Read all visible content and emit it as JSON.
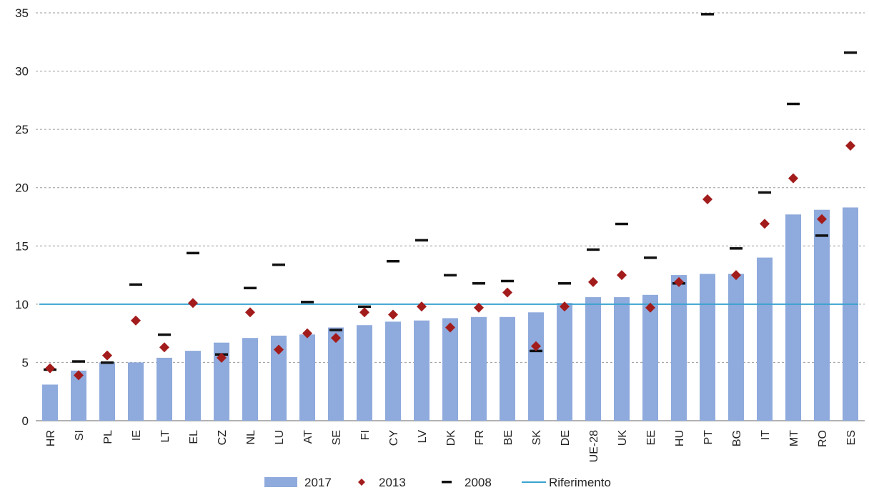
{
  "chart_data": {
    "type": "bar",
    "title": "",
    "xlabel": "",
    "ylabel": "",
    "ylim": [
      0,
      35
    ],
    "y_ticks": [
      0,
      5,
      10,
      15,
      20,
      25,
      30,
      35
    ],
    "grid": true,
    "legend_position": "bottom",
    "categories": [
      "HR",
      "SI",
      "PL",
      "IE",
      "LT",
      "EL",
      "CZ",
      "NL",
      "LU",
      "AT",
      "SE",
      "FI",
      "CY",
      "LV",
      "DK",
      "FR",
      "BE",
      "SK",
      "DE",
      "UE-28",
      "UK",
      "EE",
      "HU",
      "PT",
      "BG",
      "IT",
      "MT",
      "RO",
      "ES"
    ],
    "series": [
      {
        "name": "2017",
        "kind": "bar",
        "color": "#8faadc",
        "values": [
          3.1,
          4.3,
          5.0,
          5.0,
          5.4,
          6.0,
          6.7,
          7.1,
          7.3,
          7.4,
          8.0,
          8.2,
          8.5,
          8.6,
          8.8,
          8.9,
          8.9,
          9.3,
          10.1,
          10.6,
          10.6,
          10.8,
          12.5,
          12.6,
          12.6,
          14.0,
          17.7,
          18.1,
          18.3
        ]
      },
      {
        "name": "2013",
        "kind": "diamond",
        "color": "#a31c1c",
        "values": [
          4.5,
          3.9,
          5.6,
          8.6,
          6.3,
          10.1,
          5.4,
          9.3,
          6.1,
          7.5,
          7.1,
          9.3,
          9.1,
          9.8,
          8.0,
          9.7,
          11.0,
          6.4,
          9.8,
          11.9,
          12.5,
          9.7,
          11.9,
          19.0,
          12.5,
          16.9,
          20.8,
          17.3,
          23.6
        ]
      },
      {
        "name": "2008",
        "kind": "dash",
        "color": "#111111",
        "values": [
          4.4,
          5.1,
          5.0,
          11.7,
          7.4,
          14.4,
          5.7,
          11.4,
          13.4,
          10.2,
          7.8,
          9.8,
          13.7,
          15.5,
          12.5,
          11.8,
          12.0,
          6.0,
          11.8,
          14.7,
          16.9,
          14.0,
          11.8,
          34.9,
          14.8,
          19.6,
          27.2,
          15.9,
          31.6
        ]
      },
      {
        "name": "Riferimento",
        "kind": "line",
        "color": "#3aa3d0",
        "value": 10
      }
    ]
  }
}
